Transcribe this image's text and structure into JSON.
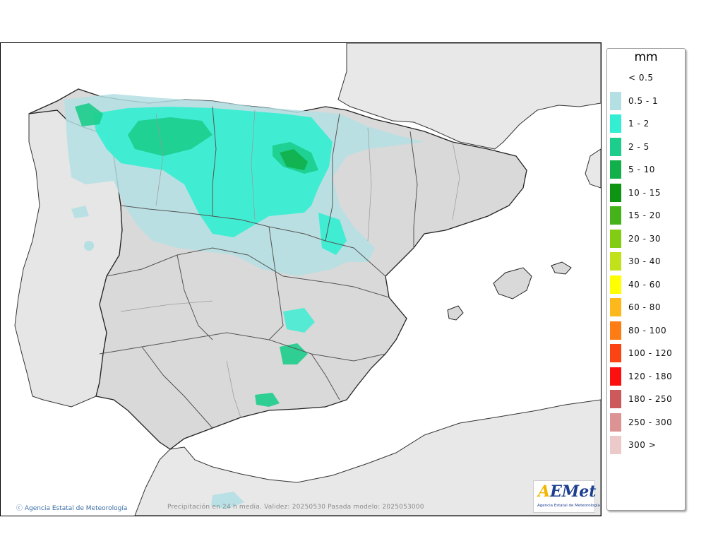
{
  "legend": {
    "title": "mm",
    "items": [
      {
        "label": "< 0.5",
        "color": "#ffffff"
      },
      {
        "label": "0.5 - 1",
        "color": "#b4dfe3"
      },
      {
        "label": "1 - 2",
        "color": "#33eed2"
      },
      {
        "label": "2 - 5",
        "color": "#1ccd8c"
      },
      {
        "label": "5 - 10",
        "color": "#11b04b"
      },
      {
        "label": "10 - 15",
        "color": "#0d9412"
      },
      {
        "label": "15 - 20",
        "color": "#44b31a"
      },
      {
        "label": "20 - 30",
        "color": "#82cc14"
      },
      {
        "label": "30 - 40",
        "color": "#c1e11b"
      },
      {
        "label": "40 - 60",
        "color": "#ffff00"
      },
      {
        "label": "60 - 80",
        "color": "#fdb91c"
      },
      {
        "label": "80 - 100",
        "color": "#fd7c13"
      },
      {
        "label": "100 - 120",
        "color": "#fc4313"
      },
      {
        "label": "120 - 180",
        "color": "#fb0f0f"
      },
      {
        "label": "180 - 250",
        "color": "#cc5a5a"
      },
      {
        "label": "250 - 300",
        "color": "#dd9393"
      },
      {
        "label": "300 >",
        "color": "#eccaca"
      }
    ]
  },
  "footer": {
    "copyright": "Agencia Estatal de Meteorología",
    "caption": "Precipitación en 24 h media. Validez: 20250530 Pasada modelo: 2025053000"
  },
  "logo": {
    "name": "AEMet",
    "subtitle": "Agencia Estatal de Meteorología"
  }
}
